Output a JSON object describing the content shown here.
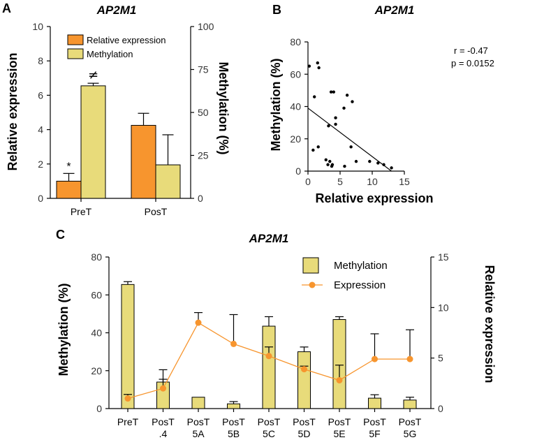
{
  "colors": {
    "orange": "#F7952E",
    "yellow": "#E8DB7A",
    "point": "#000000"
  },
  "chart_data": [
    {
      "panel": "A",
      "type": "bar",
      "title": "AP2M1",
      "categories": [
        "PreT",
        "PosT"
      ],
      "ylabel_left": "Relative expression",
      "ylabel_right": "Methylation (%)",
      "ylim_left": [
        0,
        10
      ],
      "ylim_right": [
        0,
        100
      ],
      "yticks_left": [
        "0",
        "2",
        "4",
        "6",
        "8",
        "10"
      ],
      "yticks_right": [
        "0",
        "25",
        "50",
        "75",
        "100"
      ],
      "legend": [
        "Relative expression",
        "Methylation"
      ],
      "series": [
        {
          "name": "Relative expression",
          "axis": "left",
          "values": [
            1.0,
            4.25
          ],
          "errors": [
            0.45,
            0.7
          ]
        },
        {
          "name": "Methylation",
          "axis": "right",
          "values": [
            65.5,
            19.5
          ],
          "errors": [
            1.5,
            17.5
          ]
        }
      ],
      "annotations": [
        "*",
        "≠"
      ]
    },
    {
      "panel": "B",
      "type": "scatter",
      "title": "AP2M1",
      "xlabel": "Relative expression",
      "ylabel": "Methylation (%)",
      "xlim": [
        0,
        15
      ],
      "ylim": [
        0,
        80
      ],
      "xticks": [
        "0",
        "5",
        "10",
        "15"
      ],
      "yticks": [
        "0",
        "20",
        "40",
        "60",
        "80"
      ],
      "annotation_r": "r = -0.47",
      "annotation_p": "p = 0.0152",
      "regression": {
        "x0": 0,
        "y0": 39,
        "x1": 13,
        "y1": 0
      },
      "points": [
        [
          0.2,
          65
        ],
        [
          0.8,
          13
        ],
        [
          1.0,
          46
        ],
        [
          1.5,
          67
        ],
        [
          1.7,
          64
        ],
        [
          1.6,
          15
        ],
        [
          2.8,
          7
        ],
        [
          3.2,
          28
        ],
        [
          3.1,
          4
        ],
        [
          3.4,
          6
        ],
        [
          3.6,
          49
        ],
        [
          4.0,
          49
        ],
        [
          3.7,
          3
        ],
        [
          3.8,
          4
        ],
        [
          4.3,
          33
        ],
        [
          4.3,
          29
        ],
        [
          5.6,
          39
        ],
        [
          5.7,
          3
        ],
        [
          6.1,
          47
        ],
        [
          6.7,
          15
        ],
        [
          6.9,
          43
        ],
        [
          7.5,
          6
        ],
        [
          9.6,
          6
        ],
        [
          10.9,
          5
        ],
        [
          11.8,
          4
        ],
        [
          13.0,
          2
        ]
      ]
    },
    {
      "panel": "C",
      "type": "bar",
      "title": "AP2M1",
      "categories": [
        [
          "PreT"
        ],
        [
          "PosT",
          ".4"
        ],
        [
          "PosT",
          "5A"
        ],
        [
          "PosT",
          "5B"
        ],
        [
          "PosT",
          "5C"
        ],
        [
          "PosT",
          "5D"
        ],
        [
          "PosT",
          "5E"
        ],
        [
          "PosT",
          "5F"
        ],
        [
          "PosT",
          "5G"
        ]
      ],
      "ylabel_left": "Methylation (%)",
      "ylabel_right": "Relative expression",
      "ylim_left": [
        0,
        80
      ],
      "ylim_right": [
        0,
        15
      ],
      "yticks_left": [
        "0",
        "20",
        "40",
        "60",
        "80"
      ],
      "yticks_right": [
        "0",
        "5",
        "10",
        "15"
      ],
      "legend": [
        "Methylation",
        "Expression"
      ],
      "series": [
        {
          "name": "Methylation",
          "type": "bar",
          "axis": "left",
          "values": [
            65.5,
            14,
            6,
            2.5,
            43.5,
            30,
            47,
            5.5,
            4.5
          ],
          "errors": [
            1.5,
            6.5,
            0,
            1.2,
            5,
            2.5,
            1.5,
            1.8,
            1.5
          ]
        },
        {
          "name": "Expression",
          "type": "line",
          "axis": "right",
          "values": [
            1.0,
            2.0,
            8.5,
            6.4,
            5.2,
            3.9,
            2.8,
            4.9,
            4.9
          ],
          "errors": [
            0.4,
            0.9,
            1.0,
            2.9,
            0.9,
            0.3,
            1.5,
            2.5,
            2.9
          ]
        }
      ]
    }
  ]
}
